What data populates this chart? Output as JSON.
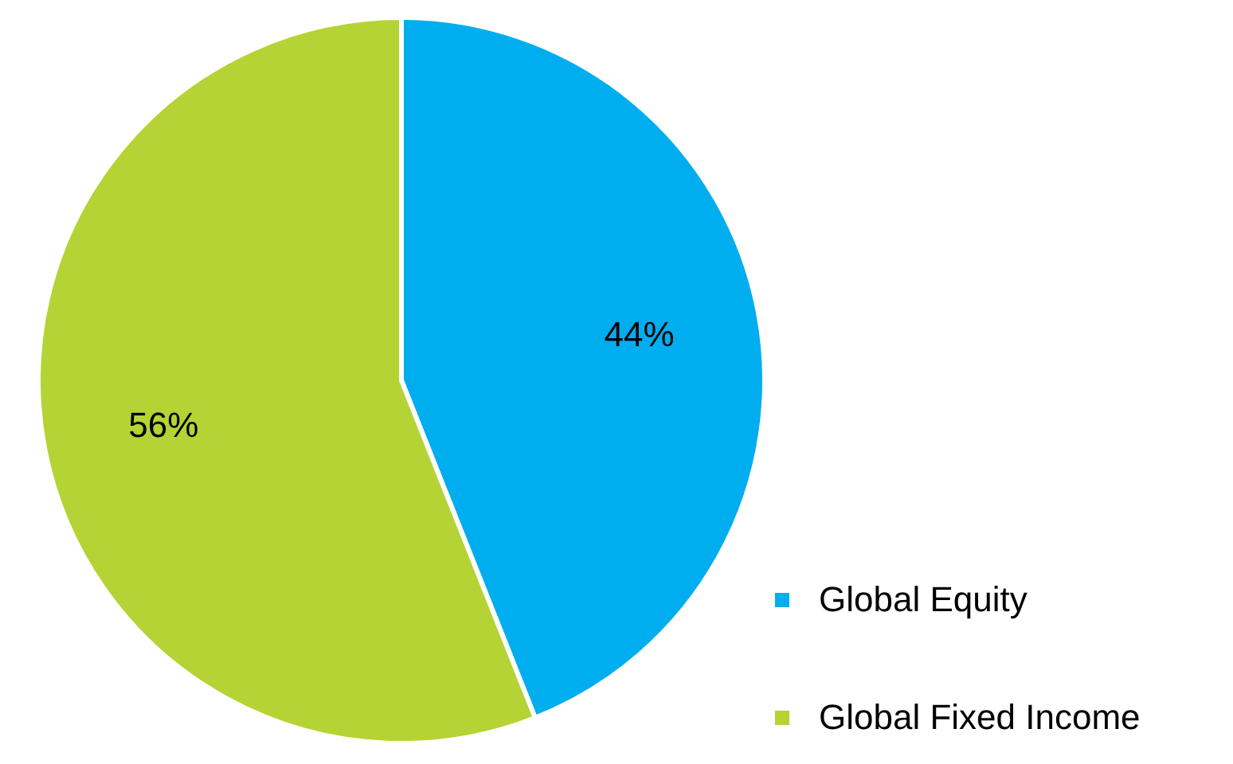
{
  "chart_data": {
    "type": "pie",
    "categories": [
      "Global Equity",
      "Global Fixed Income"
    ],
    "values": [
      44,
      56
    ],
    "colors": [
      "#00aeef",
      "#b5d334"
    ],
    "value_labels": [
      "44%",
      "56%"
    ],
    "legend": "bottom right"
  }
}
